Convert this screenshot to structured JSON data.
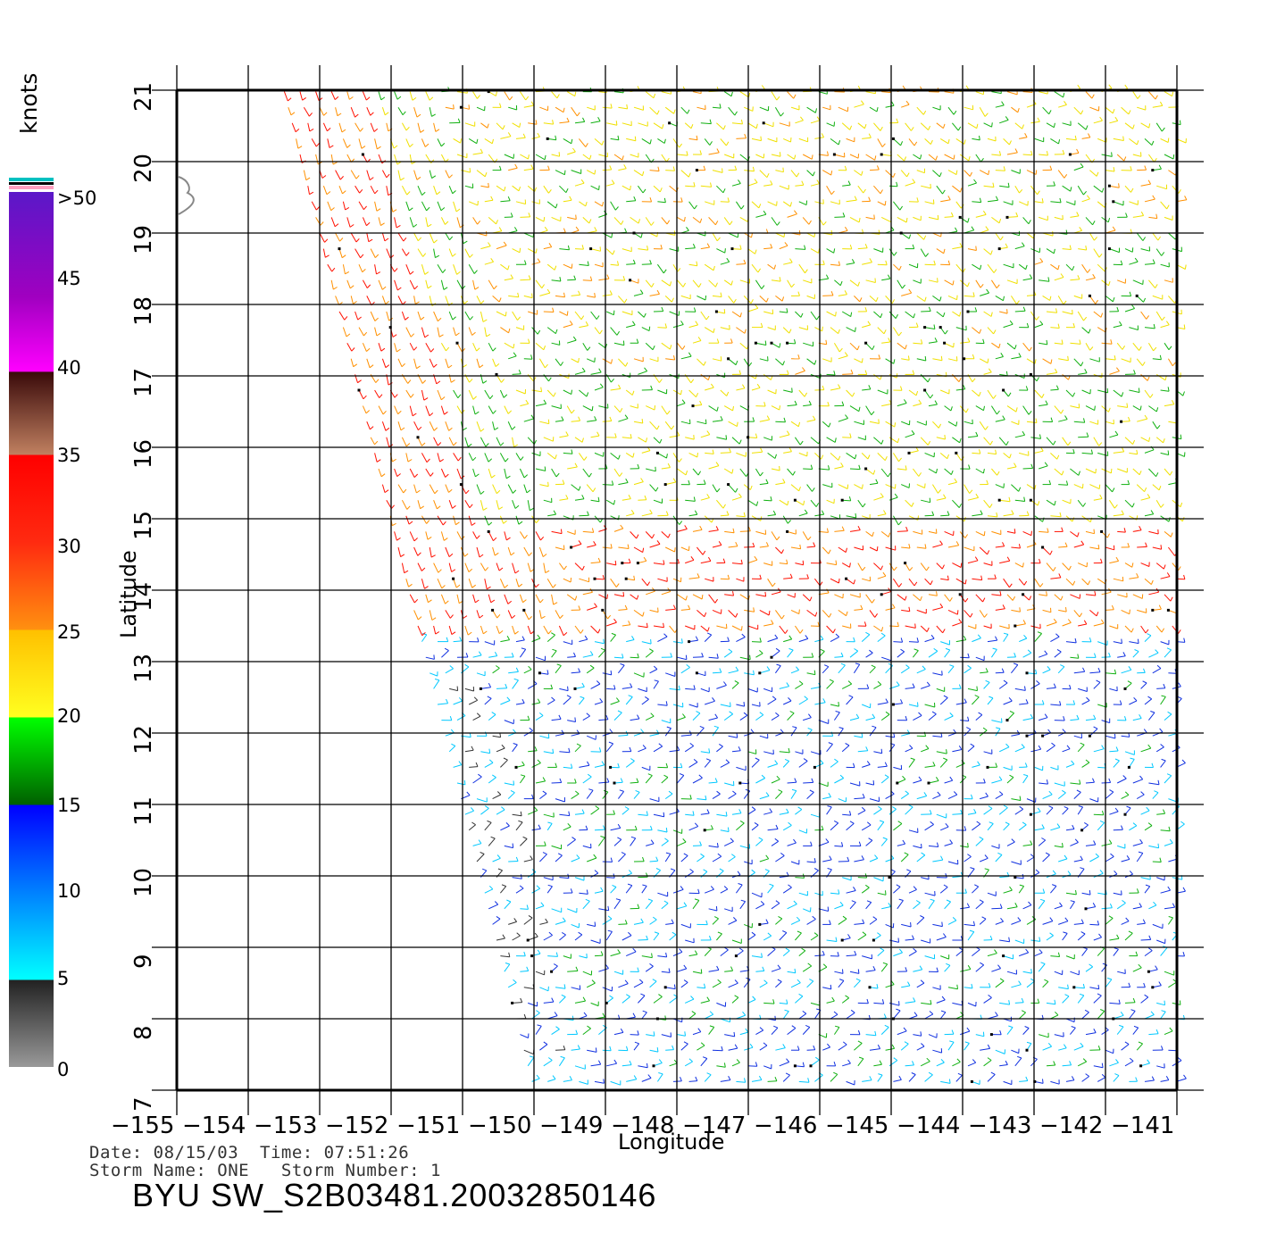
{
  "colorbar": {
    "unit": "knots",
    "labels": [
      ">50",
      "45",
      "40",
      "35",
      "30",
      "25",
      "20",
      "15",
      "10",
      "5",
      "0"
    ]
  },
  "chart_data": {
    "type": "wind-vector-map",
    "xlabel": "Longitude",
    "ylabel": "Latitude",
    "xlim": [
      -155,
      -141
    ],
    "ylim": [
      7,
      21
    ],
    "x_ticks": [
      "-155",
      "-154",
      "-153",
      "-152",
      "-151",
      "-150",
      "-149",
      "-148",
      "-147",
      "-146",
      "-145",
      "-144",
      "-143",
      "-142",
      "-141"
    ],
    "y_ticks": [
      "7",
      "8",
      "9",
      "10",
      "11",
      "12",
      "13",
      "14",
      "15",
      "16",
      "17",
      "18",
      "19",
      "20",
      "21"
    ],
    "grid": true,
    "swath_edge_lon_at_top": -153.5,
    "swath_edge_lon_at_bottom": -150,
    "wind_regions": [
      {
        "lat_range": [
          17,
          21
        ],
        "speed_knots": 22,
        "note": "yellow/green, red near western edge"
      },
      {
        "lat_range": [
          14,
          17
        ],
        "speed_knots": 20
      },
      {
        "lat_range": [
          13.5,
          15
        ],
        "speed_knots": 30,
        "note": "red band west"
      },
      {
        "lat_range": [
          7,
          13
        ],
        "speed_knots": 12,
        "note": "blue/green, cyan near western edge"
      }
    ]
  },
  "info": {
    "line1": "Date: 08/15/03  Time: 07:51:26",
    "line2": "Storm Name: ONE   Storm Number: 1",
    "file_id": "BYU SW_S2B03481.20032850146"
  }
}
